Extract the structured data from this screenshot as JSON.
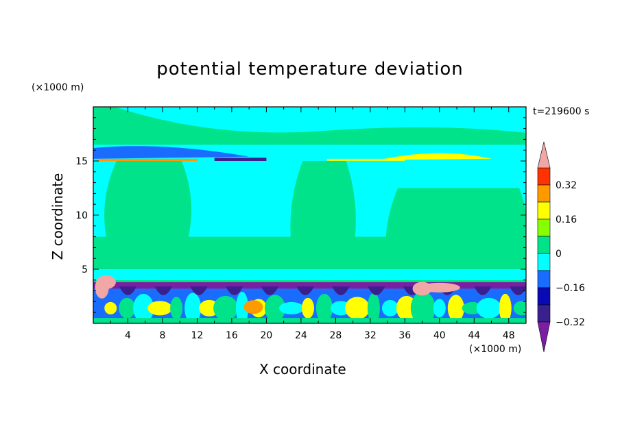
{
  "chart_data": {
    "type": "heatmap",
    "title": "potential temperature deviation",
    "xlabel": "X coordinate",
    "ylabel": "Z coordinate",
    "x_unit_label": "(×1000 m)",
    "y_unit_label": "(×1000 m)",
    "time_label": "t=219600 s",
    "xlim": [
      0,
      50
    ],
    "ylim": [
      0,
      20
    ],
    "x_ticks": [
      4,
      8,
      12,
      16,
      20,
      24,
      28,
      32,
      36,
      40,
      44,
      48
    ],
    "y_ticks": [
      5,
      10,
      15
    ],
    "colorbar": {
      "levels": [
        -0.4,
        -0.32,
        -0.24,
        -0.16,
        -0.08,
        0,
        0.08,
        0.16,
        0.24,
        0.32,
        0.4
      ],
      "labels": [
        "-0.32",
        "-0.16",
        "0",
        "0.16",
        "0.32"
      ],
      "label_values": [
        -0.32,
        -0.16,
        0,
        0.16,
        0.32
      ],
      "colors": [
        "#7b1fa2",
        "#3a1f8f",
        "#0a0ab4",
        "#1a6cff",
        "#00ffff",
        "#00e38a",
        "#88ff00",
        "#ffff00",
        "#ff9900",
        "#ff3300",
        "#f2a7a7"
      ],
      "extend": "both"
    },
    "regions": {
      "top_layer": {
        "z": [
          16,
          20
        ],
        "value": 0.02
      },
      "tropopause_band": {
        "z": [
          15,
          16.5
        ],
        "value": -0.1
      },
      "mid_plumes": [
        {
          "x": [
            1.5,
            11
          ],
          "z": [
            8,
            15
          ],
          "value": 0.02
        },
        {
          "x": [
            23,
            30
          ],
          "z": [
            6.5,
            15
          ],
          "value": 0.02
        },
        {
          "x": [
            34,
            50
          ],
          "z": [
            5,
            12.5
          ],
          "value": 0.02
        }
      ],
      "inversion_band": {
        "z": [
          3.2,
          3.8
        ],
        "value": -0.34
      },
      "boundary_layer": {
        "z": [
          0,
          3.2
        ],
        "value": -0.1
      },
      "warm_blobs": [
        {
          "x": 1.5,
          "z": 3.8,
          "value": 0.4
        },
        {
          "x": 38,
          "z": 3.2,
          "value": 0.4
        },
        {
          "x": 18.5,
          "z": 1.5,
          "value": 0.3
        }
      ]
    }
  }
}
